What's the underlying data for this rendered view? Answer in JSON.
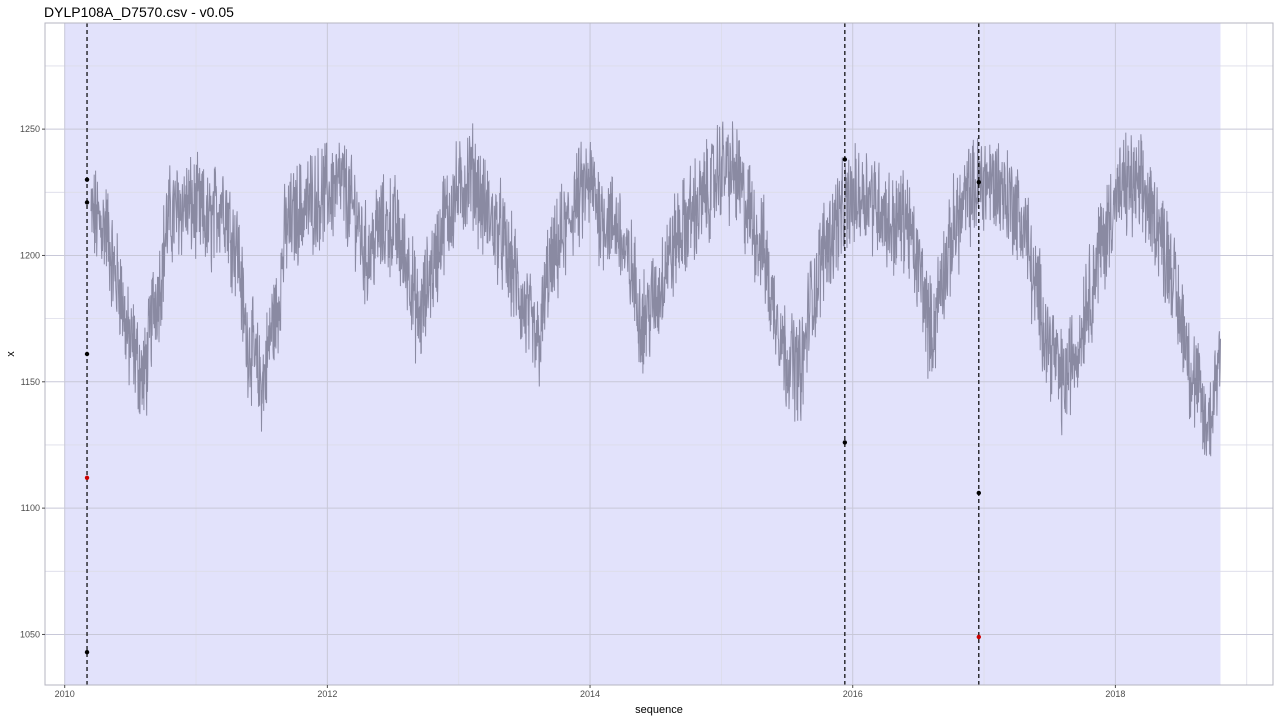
{
  "title": "DYLP108A_D7570.csv - v0.05",
  "chart_data": {
    "type": "line",
    "title": "DYLP108A_D7570.csv - v0.05",
    "xlabel": "sequence",
    "ylabel": "x",
    "xlim": [
      2009.85,
      2019.2
    ],
    "ylim": [
      1030,
      1292
    ],
    "x_ticks": [
      2010,
      2012,
      2014,
      2016,
      2018
    ],
    "x_tick_labels": [
      "2010",
      "2012",
      "2014",
      "2016",
      "2018"
    ],
    "y_ticks": [
      1050,
      1100,
      1150,
      1200,
      1250
    ],
    "y_tick_labels": [
      "1050",
      "1100",
      "1150",
      "1200",
      "1250"
    ],
    "grid": true,
    "colors": {
      "panel_background": "#ffffff",
      "shaded_region": "#e2e2fb",
      "grid_major": "#c8c8d8",
      "grid_minor": "#dcdce8",
      "line": "#8a8aa2",
      "changepoint_line": "#000000",
      "point": "#000000",
      "outlier_point": "#cc0000"
    },
    "shaded_region": {
      "x": [
        2010.0,
        2018.8
      ]
    },
    "changepoints": [
      2010.17,
      2015.94,
      2016.96
    ],
    "series": [
      {
        "x": [
          2010.2,
          2010.3,
          2010.4,
          2010.5,
          2010.6,
          2010.7,
          2010.8,
          2010.9,
          2011.0,
          2011.1,
          2011.2,
          2011.3,
          2011.4,
          2011.5,
          2011.6,
          2011.7,
          2011.8,
          2011.9,
          2012.0,
          2012.1,
          2012.2,
          2012.3,
          2012.4,
          2012.5,
          2012.6,
          2012.7,
          2012.8,
          2012.9,
          2013.0,
          2013.1,
          2013.2,
          2013.3,
          2013.4,
          2013.5,
          2013.6,
          2013.7,
          2013.8,
          2013.9,
          2014.0,
          2014.1,
          2014.2,
          2014.3,
          2014.4,
          2014.5,
          2014.6,
          2014.7,
          2014.8,
          2014.9,
          2015.0,
          2015.1,
          2015.2,
          2015.3,
          2015.4,
          2015.5,
          2015.6,
          2015.7,
          2015.8,
          2015.9,
          2016.0,
          2016.1,
          2016.2,
          2016.3,
          2016.4,
          2016.5,
          2016.6,
          2016.7,
          2016.8,
          2016.9,
          2017.0,
          2017.1,
          2017.2,
          2017.3,
          2017.4,
          2017.5,
          2017.6,
          2017.7,
          2017.8,
          2017.9,
          2018.0,
          2018.1,
          2018.2,
          2018.3,
          2018.4,
          2018.5,
          2018.6,
          2018.7,
          2018.8
        ],
        "y": [
          1215,
          1212,
          1190,
          1165,
          1152,
          1185,
          1215,
          1220,
          1218,
          1212,
          1222,
          1205,
          1165,
          1150,
          1175,
          1212,
          1218,
          1222,
          1225,
          1228,
          1218,
          1200,
          1210,
          1212,
          1198,
          1175,
          1195,
          1215,
          1225,
          1232,
          1218,
          1210,
          1195,
          1178,
          1165,
          1195,
          1208,
          1222,
          1228,
          1215,
          1212,
          1195,
          1175,
          1182,
          1200,
          1210,
          1218,
          1225,
          1235,
          1232,
          1218,
          1205,
          1180,
          1160,
          1155,
          1185,
          1205,
          1215,
          1222,
          1225,
          1220,
          1212,
          1215,
          1195,
          1170,
          1195,
          1215,
          1225,
          1230,
          1228,
          1222,
          1212,
          1185,
          1165,
          1150,
          1162,
          1185,
          1205,
          1222,
          1228,
          1225,
          1215,
          1200,
          1175,
          1150,
          1132,
          1160
        ]
      }
    ],
    "points": [
      {
        "x": 2010.17,
        "y": 1230,
        "kind": "changepoint"
      },
      {
        "x": 2010.17,
        "y": 1221,
        "kind": "changepoint"
      },
      {
        "x": 2010.17,
        "y": 1161,
        "kind": "changepoint"
      },
      {
        "x": 2010.17,
        "y": 1043,
        "kind": "changepoint"
      },
      {
        "x": 2010.17,
        "y": 1112,
        "kind": "outlier"
      },
      {
        "x": 2015.94,
        "y": 1238,
        "kind": "changepoint"
      },
      {
        "x": 2015.94,
        "y": 1126,
        "kind": "changepoint"
      },
      {
        "x": 2016.96,
        "y": 1229,
        "kind": "changepoint"
      },
      {
        "x": 2016.96,
        "y": 1106,
        "kind": "changepoint"
      },
      {
        "x": 2016.96,
        "y": 1049,
        "kind": "outlier"
      }
    ]
  }
}
